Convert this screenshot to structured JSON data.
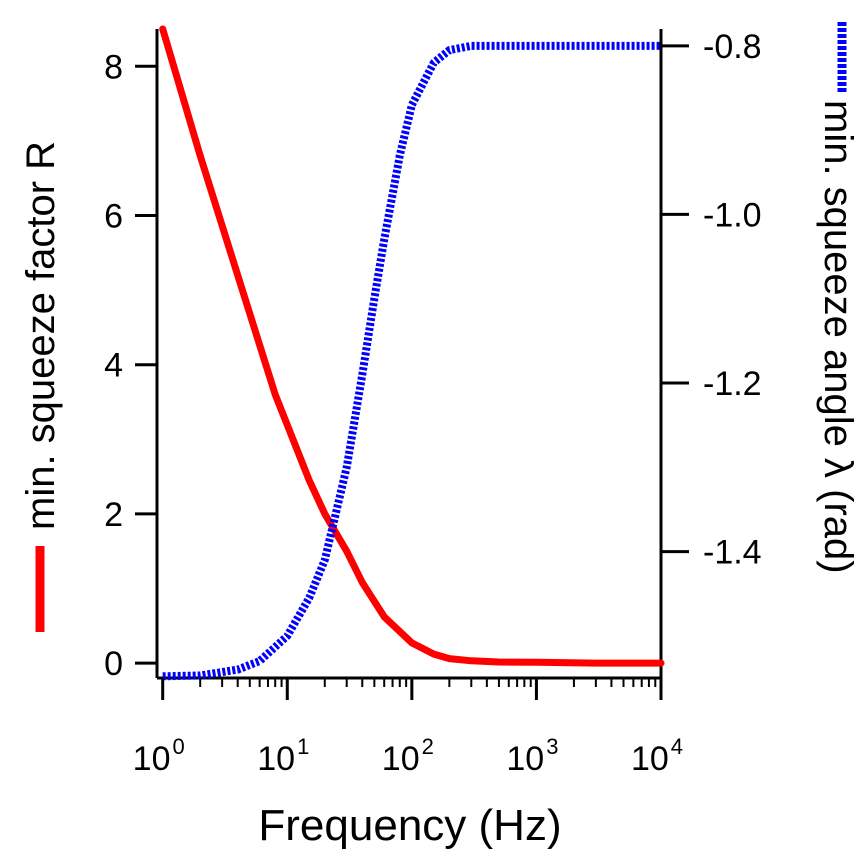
{
  "chart_data": {
    "type": "line",
    "xlabel": "Frequency (Hz)",
    "ylabel_left": "min. squeeze factor R",
    "ylabel_right": "min. squeeze angle λ (rad)",
    "x_scale": "log",
    "xlim": [
      0.9,
      10000
    ],
    "ylim_left": [
      -0.2,
      8.5
    ],
    "ylim_right": [
      -1.55,
      -0.78
    ],
    "x_ticks": [
      {
        "value": 1,
        "base": "10",
        "exp": "0"
      },
      {
        "value": 10,
        "base": "10",
        "exp": "1"
      },
      {
        "value": 100,
        "base": "10",
        "exp": "2"
      },
      {
        "value": 1000,
        "base": "10",
        "exp": "3"
      },
      {
        "value": 10000,
        "base": "10",
        "exp": "4"
      }
    ],
    "y_ticks_left": [
      {
        "value": 0,
        "label": "0"
      },
      {
        "value": 2,
        "label": "2"
      },
      {
        "value": 4,
        "label": "4"
      },
      {
        "value": 6,
        "label": "6"
      },
      {
        "value": 8,
        "label": "8"
      }
    ],
    "y_ticks_right": [
      {
        "value": -0.8,
        "label": "-0.8"
      },
      {
        "value": -1.0,
        "label": "-1.0"
      },
      {
        "value": -1.2,
        "label": "-1.2"
      },
      {
        "value": -1.4,
        "label": "-1.4"
      }
    ],
    "grid": false,
    "series": [
      {
        "axis": "left",
        "style": "solid",
        "color": "#ff0000",
        "x": [
          1,
          2,
          4,
          8,
          15,
          20,
          30,
          40,
          60,
          100,
          150,
          200,
          300,
          500,
          1000,
          3000,
          10000
        ],
        "values": [
          8.5,
          6.8,
          5.2,
          3.6,
          2.45,
          2.0,
          1.5,
          1.08,
          0.62,
          0.27,
          0.12,
          0.06,
          0.03,
          0.015,
          0.01,
          0.0,
          0.0
        ]
      },
      {
        "axis": "right",
        "style": "dotted",
        "color": "#0000ff",
        "x": [
          1,
          2,
          4,
          6,
          10,
          15,
          20,
          30,
          40,
          50,
          60,
          80,
          100,
          150,
          200,
          300,
          500,
          1000,
          10000
        ],
        "values": [
          -1.548,
          -1.547,
          -1.54,
          -1.53,
          -1.5,
          -1.455,
          -1.41,
          -1.3,
          -1.19,
          -1.1,
          -1.03,
          -0.93,
          -0.87,
          -0.82,
          -0.805,
          -0.8,
          -0.8,
          -0.8,
          -0.8
        ]
      }
    ]
  }
}
